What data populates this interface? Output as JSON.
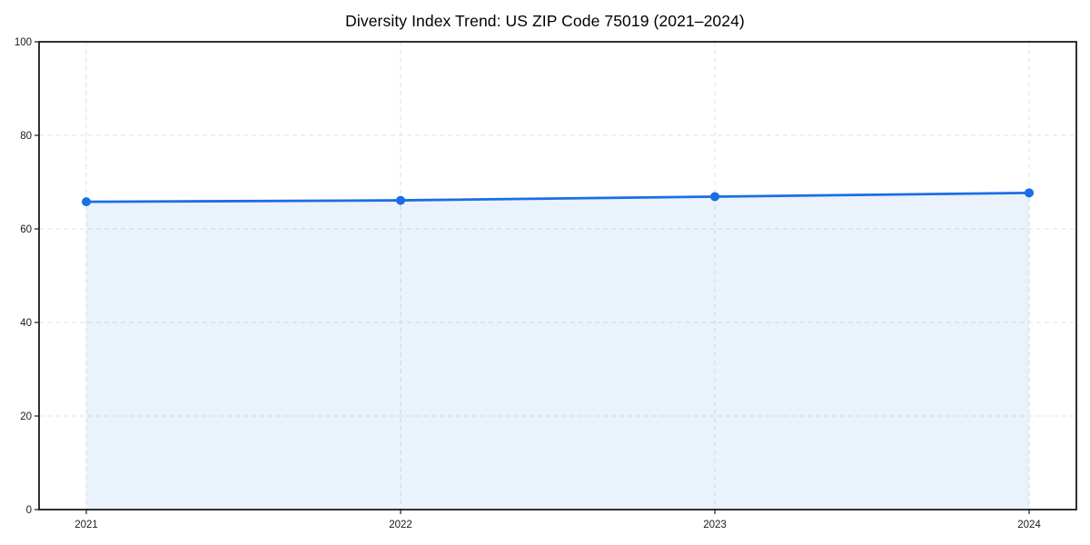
{
  "chart_data": {
    "type": "line",
    "title": "Diversity Index Trend: US ZIP Code 75019 (2021–2024)",
    "x": [
      "2021",
      "2022",
      "2023",
      "2024"
    ],
    "values": [
      65.8,
      66.1,
      66.9,
      67.7
    ],
    "xlabel": "",
    "ylabel": "",
    "ylim": [
      0,
      100
    ],
    "yticks": [
      0,
      20,
      40,
      60,
      80,
      100
    ],
    "grid": true,
    "legend": false,
    "area_fill": true,
    "marker": "circle",
    "colors": {
      "line": "#1b6ee3",
      "marker": "#1b6ee3",
      "area": "#1b6ee3",
      "area_opacity": 0.09,
      "grid": "#e0e0e0",
      "spine": "#1a1a1a",
      "tick_text": "#1a1a1a",
      "title_text": "#000000",
      "background": "#ffffff"
    }
  }
}
